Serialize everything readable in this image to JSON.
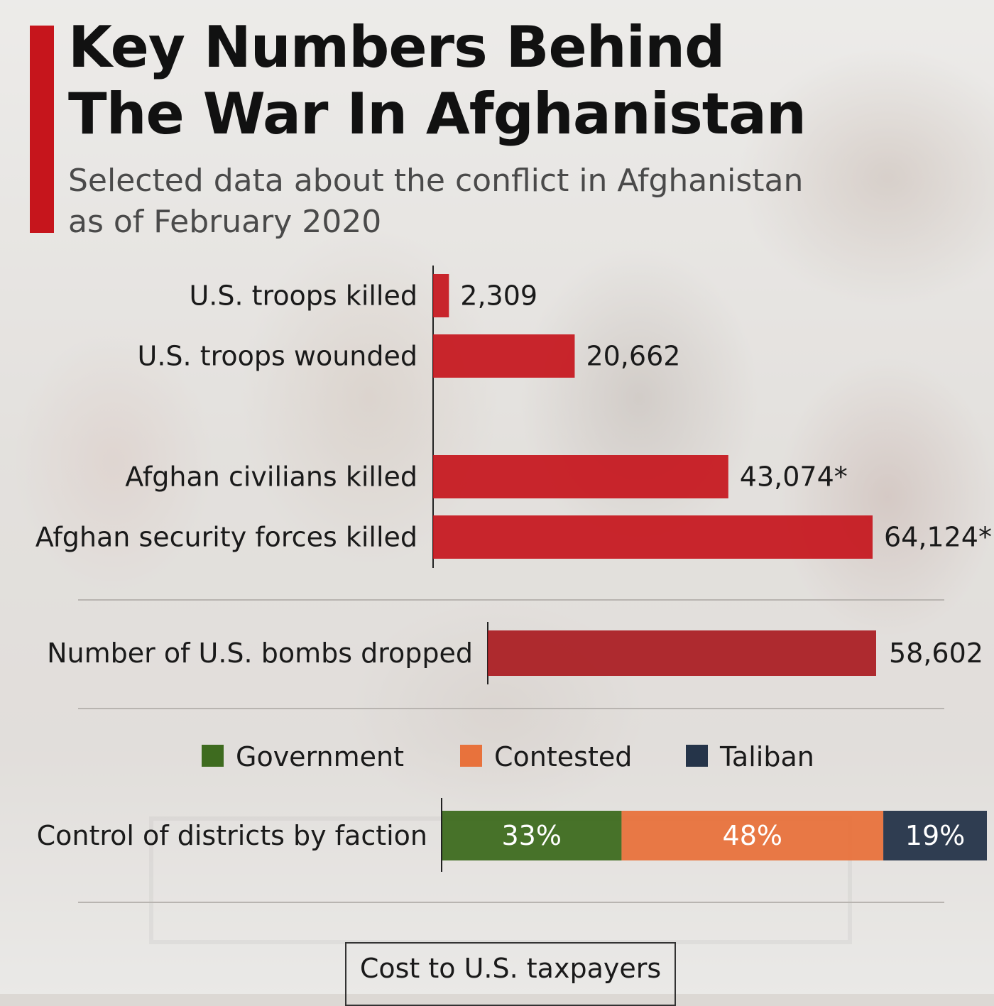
{
  "title_line1": "Key Numbers Behind",
  "title_line2": "The War In Afghanistan",
  "subtitle_line1": "Selected data about the conflict in Afghanistan",
  "subtitle_line2": "as of February 2020",
  "colors": {
    "accent": "#c6151c",
    "bar": "#c6151c",
    "bombs_bar": "#a8161c",
    "government": "#3e6b1f",
    "contested": "#e8723c",
    "taliban": "#253449"
  },
  "chart_data": [
    {
      "type": "bar",
      "orientation": "horizontal",
      "categories": [
        "U.S. troops killed",
        "U.S. troops wounded",
        "Afghan civilians killed",
        "Afghan security forces killed"
      ],
      "values": [
        2309,
        20662,
        43074,
        64124
      ],
      "value_labels": [
        "2,309",
        "20,662",
        "43,074*",
        "64,124*"
      ]
    },
    {
      "type": "bar",
      "orientation": "horizontal",
      "categories": [
        "Number of U.S. bombs dropped"
      ],
      "values": [
        58602
      ],
      "value_labels": [
        "58,602"
      ]
    },
    {
      "type": "bar",
      "stacked": true,
      "orientation": "horizontal",
      "categories": [
        "Control of districts by faction"
      ],
      "series": [
        {
          "name": "Government",
          "values": [
            33
          ],
          "label": "33%"
        },
        {
          "name": "Contested",
          "values": [
            48
          ],
          "label": "48%"
        },
        {
          "name": "Taliban",
          "values": [
            19
          ],
          "label": "19%"
        }
      ],
      "legend_position": "top"
    }
  ],
  "footer_box": "Cost to U.S. taxpayers"
}
